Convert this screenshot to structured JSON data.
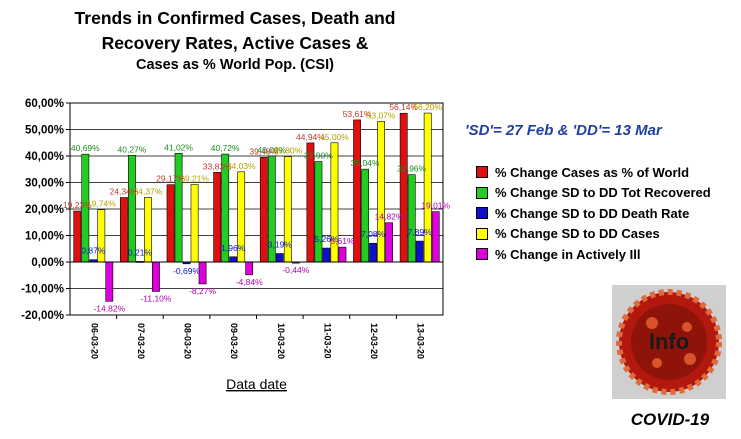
{
  "chart_data": {
    "type": "bar",
    "title_lines": [
      "Trends in Confirmed Cases, Death and",
      "Recovery Rates, Active Cases &",
      "Cases as % World Pop. (CSI)"
    ],
    "xlabel": "Data date",
    "ylabel": "",
    "categories": [
      "06-03-20",
      "07-03-20",
      "08-03-20",
      "09-03-20",
      "10-03-20",
      "11-03-20",
      "12-03-20",
      "13-03-20"
    ],
    "ylim": [
      -20,
      60
    ],
    "yticks": [
      "60,00%",
      "50,00%",
      "40,00%",
      "30,00%",
      "20,00%",
      "10,00%",
      "0,00%",
      "-10,00%",
      "-20,00%"
    ],
    "grid": true,
    "legend_position": "right",
    "series": [
      {
        "name": "% Change Cases as % of World",
        "color": "#e01010",
        "values": [
          19.23,
          24.34,
          29.17,
          33.83,
          39.48,
          44.94,
          53.61,
          56.14
        ],
        "labels": [
          "19,23%",
          "24,34%",
          "29,17%",
          "33,83%",
          "39,48%",
          "44,94%",
          "53,61%",
          "56,14%"
        ]
      },
      {
        "name": "% Change SD to DD Tot Recovered",
        "color": "#22cc22",
        "values": [
          40.69,
          40.27,
          41.02,
          40.72,
          40.0,
          37.9,
          35.04,
          32.96
        ],
        "labels": [
          "40,69%",
          "40,27%",
          "41,02%",
          "40,72%",
          "40,00%",
          "37,90%",
          "35,04%",
          "32,96%"
        ]
      },
      {
        "name": "% Change SD to DD Death Rate",
        "color": "#1010cc",
        "values": [
          0.87,
          0.21,
          -0.69,
          1.96,
          3.19,
          5.26,
          7.08,
          7.89
        ],
        "labels": [
          "0,87%",
          "0,21%",
          "-0,69%",
          "1,96%",
          "3,19%",
          "5,26%",
          "7,08%",
          "7,89%"
        ]
      },
      {
        "name": "% Change SD to DD Cases",
        "color": "#ffff00",
        "values": [
          19.74,
          24.37,
          29.21,
          34.03,
          39.8,
          45.0,
          53.07,
          56.2
        ],
        "labels": [
          "19,74%",
          "24,37%",
          "29,21%",
          "34,03%",
          "39,80%",
          "45,00%",
          "53,07%",
          "56,20%"
        ]
      },
      {
        "name": "% Change in Actively Ill",
        "color": "#dd00dd",
        "values": [
          -14.82,
          -11.1,
          -8.27,
          -4.84,
          -0.44,
          5.61,
          14.82,
          19.01
        ],
        "labels": [
          "-14,82%",
          "-11,10%",
          "-8,27%",
          "-4,84%",
          "-0,44%",
          "5,61%",
          "14,82%",
          "19,01%"
        ]
      }
    ],
    "annotations": [
      "'SD'= 27 Feb & 'DD'= 13 Mar"
    ]
  },
  "logo": {
    "text": "Info",
    "caption": "COVID-19"
  }
}
